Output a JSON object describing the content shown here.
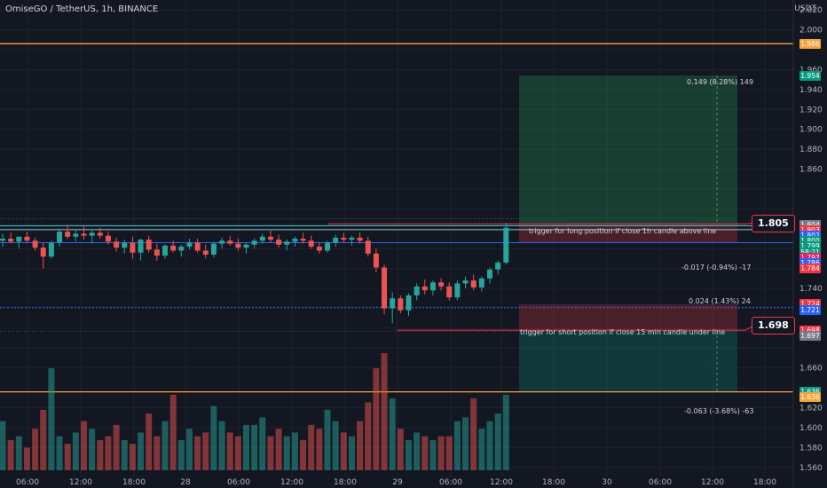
{
  "header": {
    "symbol_title": "OmiseGO / TetherUS, 1h, BINANCE",
    "currency": "USDT"
  },
  "colors": {
    "background": "#131722",
    "up": "#26a69a",
    "down": "#ef5350",
    "orange": "#f7a33a",
    "blue": "#2962ff",
    "red_line": "#f23645",
    "grid": "#1e222d"
  },
  "price_axis": {
    "ticks": [
      "2.020",
      "2.000",
      "1.960",
      "1.940",
      "1.920",
      "1.900",
      "1.880",
      "1.860",
      "1.740",
      "1.660",
      "1.620",
      "1.600",
      "1.580",
      "1.560"
    ]
  },
  "time_axis": {
    "labels": [
      "06:00",
      "12:00",
      "18:00",
      "28",
      "06:00",
      "12:00",
      "18:00",
      "29",
      "06:00",
      "12:00",
      "18:00",
      "30",
      "06:00",
      "12:00",
      "18:00"
    ]
  },
  "price_tags": [
    {
      "text": "1.986",
      "color": "#f7a33a",
      "price": 1.986
    },
    {
      "text": "1.954",
      "color": "#089981",
      "price": 1.954
    },
    {
      "text": "1.804",
      "color": "#787b86",
      "price": 1.804
    },
    {
      "text": "1.803",
      "color": "#f23645",
      "price": 1.7985
    },
    {
      "text": "1.802",
      "color": "#2962ff",
      "price": 1.793
    },
    {
      "text": "1.800",
      "color": "#089981",
      "price": 1.7875
    },
    {
      "text": "1.799",
      "color": "#089981",
      "price": 1.782
    },
    {
      "text": "58:21",
      "color": "#089981",
      "price": 1.7765
    },
    {
      "text": "1.797",
      "color": "#e91e63",
      "price": 1.771
    },
    {
      "text": "1.786",
      "color": "#2962ff",
      "price": 1.7655
    },
    {
      "text": "1.784",
      "color": "#f23645",
      "price": 1.76
    },
    {
      "text": "1.724",
      "color": "#f23645",
      "price": 1.724
    },
    {
      "text": "1.721",
      "color": "#2962ff",
      "price": 1.7185
    },
    {
      "text": "1.698",
      "color": "#f23645",
      "price": 1.698
    },
    {
      "text": "1.697",
      "color": "#787b86",
      "price": 1.6925
    },
    {
      "text": "1.636",
      "color": "#089981",
      "price": 1.636
    },
    {
      "text": "1.636",
      "color": "#f7a33a",
      "price": 1.6305
    }
  ],
  "callouts": {
    "long": "1.805",
    "short": "1.698"
  },
  "annotations": {
    "long_trigger": "trigger for long position  if close 1h candle above line",
    "short_trigger": "trigger for short position  if close 15 min candle under line"
  },
  "position_stats": {
    "long_target": "0.149 (8.28%) 149",
    "long_stop": "-0.017 (-0.94%) -17",
    "short_stop": "0.024 (1.43%) 24",
    "short_target": "-0.063 (-3.68%) -63"
  },
  "levels": {
    "resistance_orange": 1.986,
    "support_orange": 1.636,
    "long_line": 1.805,
    "short_line": 1.698
  },
  "chart_data": {
    "type": "candlestick",
    "symbol": "OmiseGO / TetherUS",
    "interval": "1h",
    "exchange": "BINANCE",
    "ylim": [
      1.55,
      2.03
    ],
    "candles": [
      [
        1.788,
        1.795,
        1.782,
        1.79
      ],
      [
        1.79,
        1.796,
        1.785,
        1.787
      ],
      [
        1.787,
        1.792,
        1.78,
        1.792
      ],
      [
        1.792,
        1.797,
        1.786,
        1.788
      ],
      [
        1.788,
        1.791,
        1.778,
        1.781
      ],
      [
        1.781,
        1.786,
        1.76,
        1.772
      ],
      [
        1.772,
        1.788,
        1.77,
        1.786
      ],
      [
        1.786,
        1.8,
        1.782,
        1.797
      ],
      [
        1.797,
        1.804,
        1.79,
        1.792
      ],
      [
        1.792,
        1.799,
        1.787,
        1.795
      ],
      [
        1.795,
        1.803,
        1.789,
        1.793
      ],
      [
        1.793,
        1.798,
        1.785,
        1.796
      ],
      [
        1.796,
        1.801,
        1.79,
        1.793
      ],
      [
        1.793,
        1.797,
        1.784,
        1.787
      ],
      [
        1.787,
        1.791,
        1.777,
        1.781
      ],
      [
        1.781,
        1.789,
        1.775,
        1.786
      ],
      [
        1.786,
        1.792,
        1.77,
        1.776
      ],
      [
        1.776,
        1.79,
        1.768,
        1.789
      ],
      [
        1.789,
        1.793,
        1.776,
        1.779
      ],
      [
        1.779,
        1.785,
        1.768,
        1.773
      ],
      [
        1.773,
        1.784,
        1.77,
        1.783
      ],
      [
        1.783,
        1.788,
        1.776,
        1.778
      ],
      [
        1.778,
        1.784,
        1.772,
        1.782
      ],
      [
        1.782,
        1.79,
        1.779,
        1.786
      ],
      [
        1.786,
        1.79,
        1.776,
        1.778
      ],
      [
        1.778,
        1.784,
        1.77,
        1.774
      ],
      [
        1.774,
        1.787,
        1.771,
        1.785
      ],
      [
        1.785,
        1.791,
        1.78,
        1.788
      ],
      [
        1.788,
        1.793,
        1.783,
        1.785
      ],
      [
        1.785,
        1.79,
        1.778,
        1.781
      ],
      [
        1.781,
        1.786,
        1.775,
        1.784
      ],
      [
        1.784,
        1.79,
        1.78,
        1.788
      ],
      [
        1.788,
        1.795,
        1.785,
        1.792
      ],
      [
        1.792,
        1.798,
        1.786,
        1.789
      ],
      [
        1.789,
        1.794,
        1.781,
        1.784
      ],
      [
        1.784,
        1.789,
        1.778,
        1.787
      ],
      [
        1.787,
        1.792,
        1.782,
        1.79
      ],
      [
        1.79,
        1.796,
        1.785,
        1.788
      ],
      [
        1.788,
        1.793,
        1.78,
        1.782
      ],
      [
        1.782,
        1.786,
        1.775,
        1.778
      ],
      [
        1.778,
        1.788,
        1.776,
        1.786
      ],
      [
        1.786,
        1.794,
        1.782,
        1.791
      ],
      [
        1.791,
        1.796,
        1.786,
        1.789
      ],
      [
        1.789,
        1.793,
        1.783,
        1.791
      ],
      [
        1.791,
        1.796,
        1.785,
        1.788
      ],
      [
        1.788,
        1.792,
        1.772,
        1.775
      ],
      [
        1.775,
        1.78,
        1.756,
        1.761
      ],
      [
        1.761,
        1.764,
        1.714,
        1.72
      ],
      [
        1.72,
        1.736,
        1.705,
        1.73
      ],
      [
        1.73,
        1.733,
        1.715,
        1.718
      ],
      [
        1.718,
        1.735,
        1.712,
        1.733
      ],
      [
        1.733,
        1.745,
        1.728,
        1.742
      ],
      [
        1.742,
        1.749,
        1.734,
        1.738
      ],
      [
        1.738,
        1.748,
        1.733,
        1.746
      ],
      [
        1.746,
        1.75,
        1.738,
        1.742
      ],
      [
        1.742,
        1.746,
        1.728,
        1.731
      ],
      [
        1.731,
        1.748,
        1.728,
        1.745
      ],
      [
        1.745,
        1.752,
        1.74,
        1.748
      ],
      [
        1.748,
        1.754,
        1.738,
        1.741
      ],
      [
        1.741,
        1.752,
        1.737,
        1.75
      ],
      [
        1.75,
        1.761,
        1.745,
        1.759
      ],
      [
        1.759,
        1.768,
        1.754,
        1.766
      ],
      [
        1.766,
        1.806,
        1.764,
        1.801
      ]
    ],
    "volume": [
      13,
      8,
      9,
      6,
      11,
      16,
      27,
      9,
      7,
      10,
      13,
      11,
      8,
      9,
      12,
      8,
      7,
      10,
      15,
      9,
      13,
      20,
      8,
      11,
      9,
      10,
      17,
      13,
      10,
      9,
      12,
      12,
      14,
      9,
      11,
      9,
      10,
      8,
      12,
      11,
      16,
      13,
      10,
      9,
      13,
      18,
      27,
      31,
      19,
      11,
      8,
      10,
      9,
      8,
      9,
      9,
      13,
      14,
      19,
      11,
      13,
      15,
      20
    ]
  }
}
